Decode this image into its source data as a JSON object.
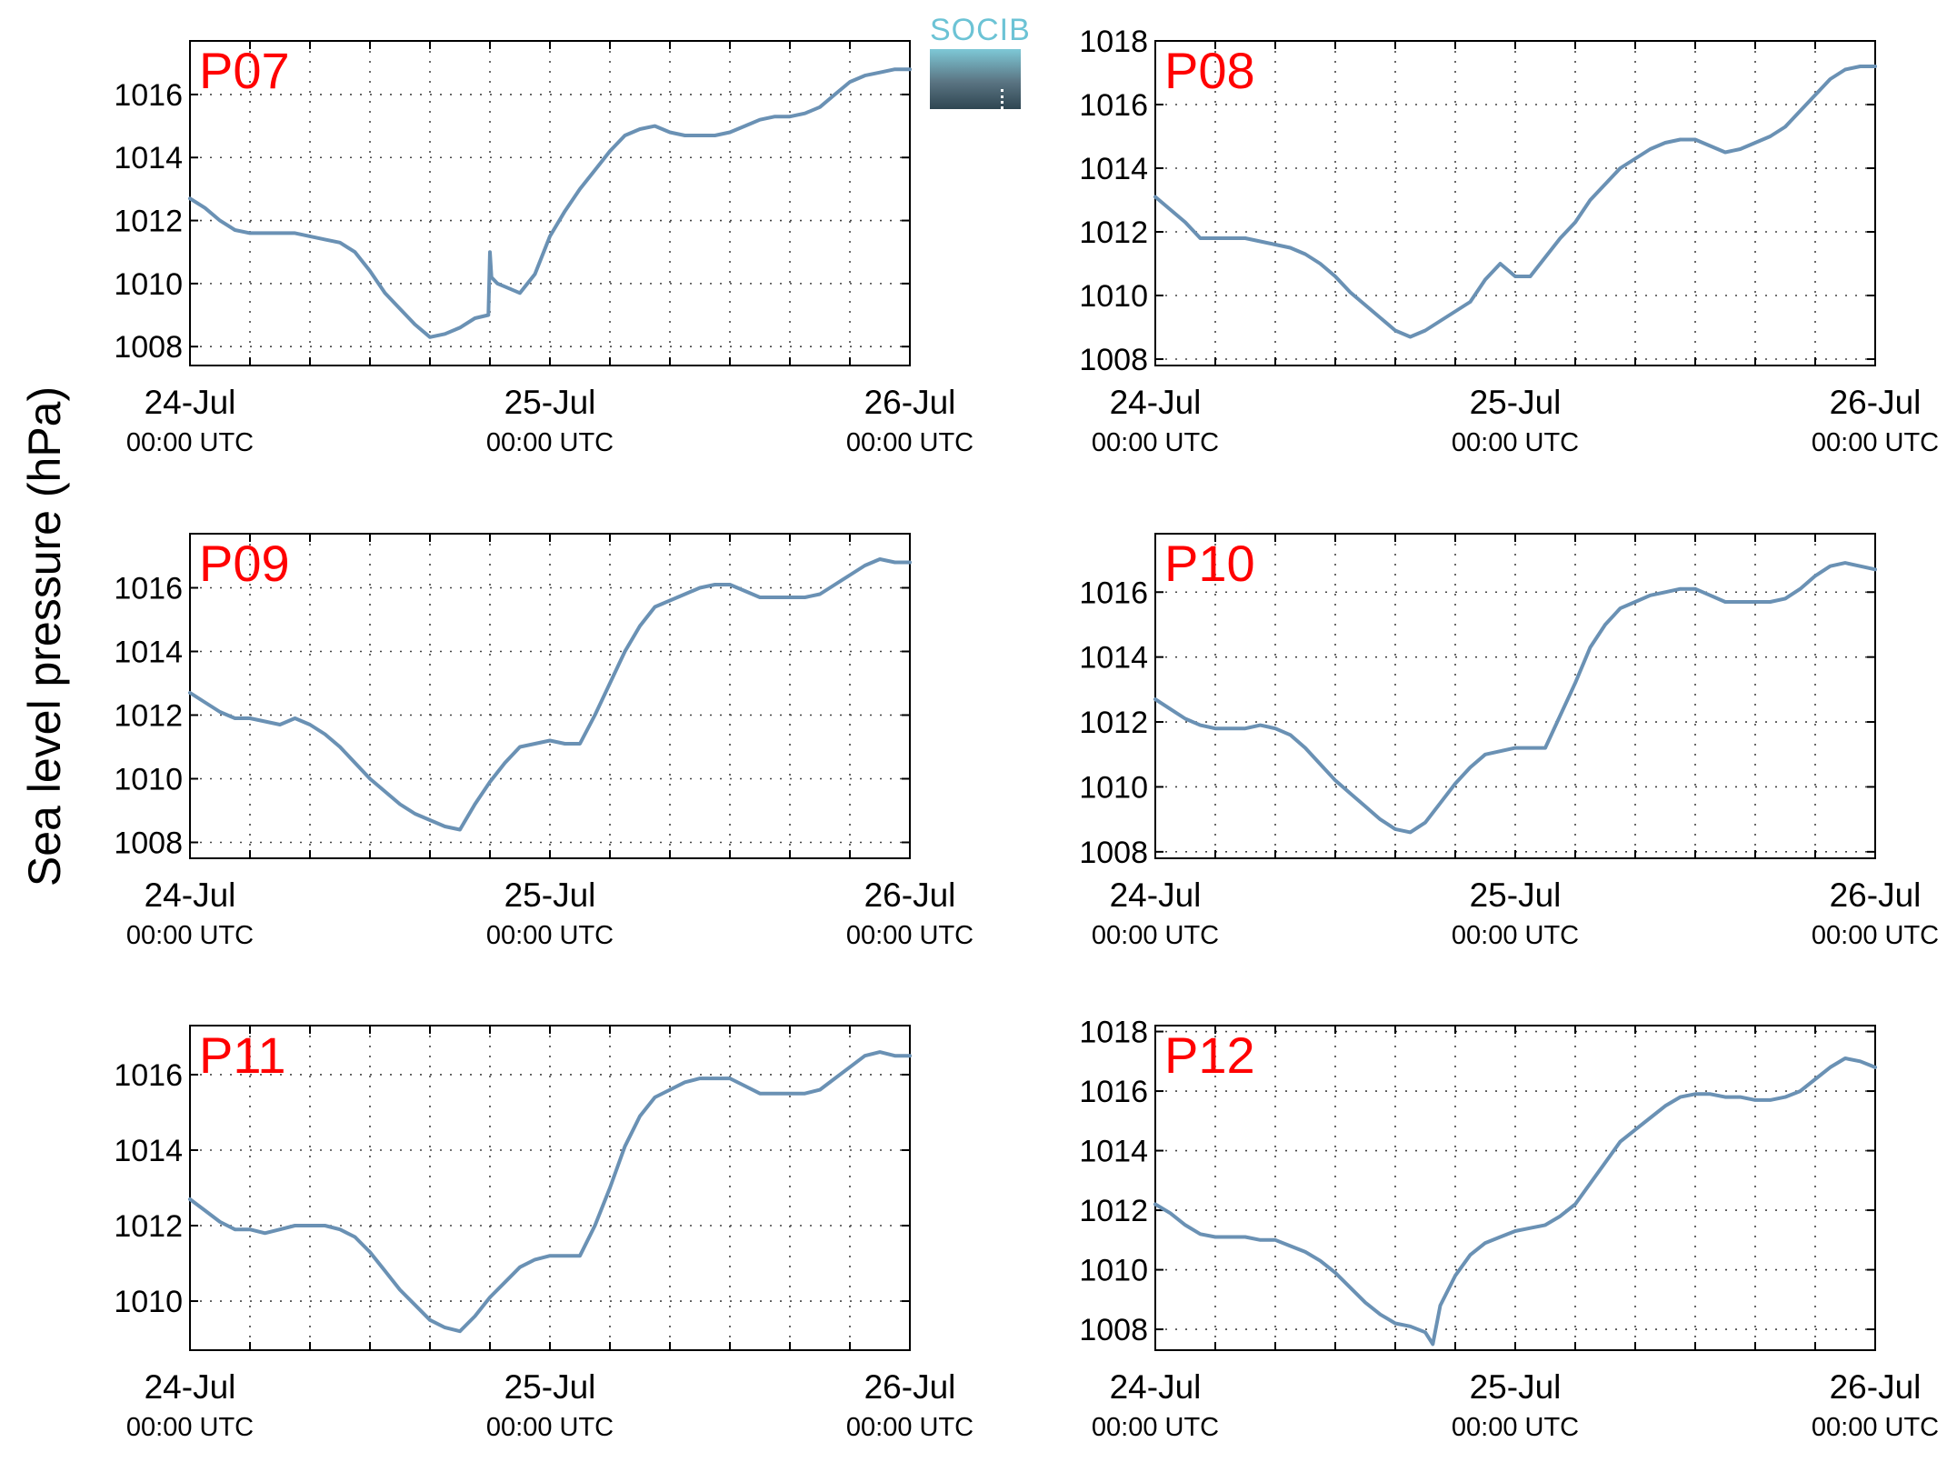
{
  "ylabel": "Sea level pressure (hPa)",
  "logo": {
    "text": "SOCIB",
    "color": "#6cc3d5"
  },
  "colors": {
    "line": "#6a91b4",
    "panel_label": "#ff0000",
    "grid": "#444444"
  },
  "x_ticks": [
    {
      "top": "24-Jul",
      "bottom": "00:00 UTC"
    },
    {
      "top": "25-Jul",
      "bottom": "00:00 UTC"
    },
    {
      "top": "26-Jul",
      "bottom": "00:00 UTC"
    }
  ],
  "chart_data": [
    {
      "type": "line",
      "label": "P07",
      "xlim": [
        0,
        48
      ],
      "ylim": [
        1007.4,
        1017.7
      ],
      "yticks": [
        1008,
        1010,
        1012,
        1014,
        1016
      ],
      "xlabel": "",
      "ylabel": "Sea level pressure (hPa)",
      "grid": true,
      "x": [
        0,
        1,
        2,
        3,
        4,
        5,
        6,
        7,
        8,
        9,
        10,
        11,
        12,
        13,
        14,
        15,
        16,
        17,
        18,
        19,
        19.9,
        20,
        20.1,
        20.5,
        21,
        22,
        23,
        24,
        25,
        26,
        27,
        28,
        29,
        30,
        31,
        32,
        33,
        34,
        35,
        36,
        37,
        38,
        39,
        40,
        41,
        42,
        43,
        44,
        45,
        46,
        47,
        48
      ],
      "values": [
        1012.7,
        1012.4,
        1012.0,
        1011.7,
        1011.6,
        1011.6,
        1011.6,
        1011.6,
        1011.5,
        1011.4,
        1011.3,
        1011.0,
        1010.4,
        1009.7,
        1009.2,
        1008.7,
        1008.3,
        1008.4,
        1008.6,
        1008.9,
        1009.0,
        1011.0,
        1010.2,
        1010.0,
        1009.9,
        1009.7,
        1010.3,
        1011.5,
        1012.3,
        1013.0,
        1013.6,
        1014.2,
        1014.7,
        1014.9,
        1015.0,
        1014.8,
        1014.7,
        1014.7,
        1014.7,
        1014.8,
        1015.0,
        1015.2,
        1015.3,
        1015.3,
        1015.4,
        1015.6,
        1016.0,
        1016.4,
        1016.6,
        1016.7,
        1016.8,
        1016.8
      ]
    },
    {
      "type": "line",
      "label": "P08",
      "xlim": [
        0,
        48
      ],
      "ylim": [
        1007.8,
        1018.0
      ],
      "yticks": [
        1008,
        1010,
        1012,
        1014,
        1016,
        1018
      ],
      "xlabel": "",
      "ylabel": "Sea level pressure (hPa)",
      "grid": true,
      "x": [
        0,
        1,
        2,
        3,
        4,
        5,
        6,
        7,
        8,
        9,
        10,
        11,
        12,
        13,
        14,
        15,
        16,
        17,
        18,
        19,
        20,
        21,
        22,
        23,
        24,
        25,
        26,
        27,
        28,
        29,
        30,
        31,
        32,
        33,
        34,
        35,
        36,
        37,
        38,
        39,
        40,
        41,
        42,
        43,
        44,
        45,
        46,
        47,
        48
      ],
      "values": [
        1013.1,
        1012.7,
        1012.3,
        1011.8,
        1011.8,
        1011.8,
        1011.8,
        1011.7,
        1011.6,
        1011.5,
        1011.3,
        1011.0,
        1010.6,
        1010.1,
        1009.7,
        1009.3,
        1008.9,
        1008.7,
        1008.9,
        1009.2,
        1009.5,
        1009.8,
        1010.5,
        1011.0,
        1010.6,
        1010.6,
        1011.2,
        1011.8,
        1012.3,
        1013.0,
        1013.5,
        1014.0,
        1014.3,
        1014.6,
        1014.8,
        1014.9,
        1014.9,
        1014.7,
        1014.5,
        1014.6,
        1014.8,
        1015.0,
        1015.3,
        1015.8,
        1016.3,
        1016.8,
        1017.1,
        1017.2,
        1017.2
      ]
    },
    {
      "type": "line",
      "label": "P09",
      "xlim": [
        0,
        48
      ],
      "ylim": [
        1007.5,
        1017.7
      ],
      "yticks": [
        1008,
        1010,
        1012,
        1014,
        1016
      ],
      "xlabel": "",
      "ylabel": "Sea level pressure (hPa)",
      "grid": true,
      "x": [
        0,
        1,
        2,
        3,
        4,
        5,
        6,
        7,
        8,
        9,
        10,
        11,
        12,
        13,
        14,
        15,
        16,
        17,
        18,
        19,
        20,
        21,
        22,
        23,
        24,
        25,
        26,
        27,
        28,
        29,
        30,
        31,
        32,
        33,
        34,
        35,
        36,
        37,
        38,
        39,
        40,
        41,
        42,
        43,
        44,
        45,
        46,
        47,
        48
      ],
      "values": [
        1012.7,
        1012.4,
        1012.1,
        1011.9,
        1011.9,
        1011.8,
        1011.7,
        1011.9,
        1011.7,
        1011.4,
        1011.0,
        1010.5,
        1010.0,
        1009.6,
        1009.2,
        1008.9,
        1008.7,
        1008.5,
        1008.4,
        1009.2,
        1009.9,
        1010.5,
        1011.0,
        1011.1,
        1011.2,
        1011.1,
        1011.1,
        1012.0,
        1013.0,
        1014.0,
        1014.8,
        1015.4,
        1015.6,
        1015.8,
        1016.0,
        1016.1,
        1016.1,
        1015.9,
        1015.7,
        1015.7,
        1015.7,
        1015.7,
        1015.8,
        1016.1,
        1016.4,
        1016.7,
        1016.9,
        1016.8,
        1016.8
      ]
    },
    {
      "type": "line",
      "label": "P10",
      "xlim": [
        0,
        48
      ],
      "ylim": [
        1007.8,
        1017.8
      ],
      "yticks": [
        1008,
        1010,
        1012,
        1014,
        1016
      ],
      "xlabel": "",
      "ylabel": "Sea level pressure (hPa)",
      "grid": true,
      "x": [
        0,
        1,
        2,
        3,
        4,
        5,
        6,
        7,
        8,
        9,
        10,
        11,
        12,
        13,
        14,
        15,
        16,
        17,
        18,
        19,
        20,
        21,
        22,
        23,
        24,
        25,
        26,
        27,
        28,
        29,
        30,
        31,
        32,
        33,
        34,
        35,
        36,
        37,
        38,
        39,
        40,
        41,
        42,
        43,
        44,
        45,
        46,
        47,
        48
      ],
      "values": [
        1012.7,
        1012.4,
        1012.1,
        1011.9,
        1011.8,
        1011.8,
        1011.8,
        1011.9,
        1011.8,
        1011.6,
        1011.2,
        1010.7,
        1010.2,
        1009.8,
        1009.4,
        1009.0,
        1008.7,
        1008.6,
        1008.9,
        1009.5,
        1010.1,
        1010.6,
        1011.0,
        1011.1,
        1011.2,
        1011.2,
        1011.2,
        1012.2,
        1013.2,
        1014.3,
        1015.0,
        1015.5,
        1015.7,
        1015.9,
        1016.0,
        1016.1,
        1016.1,
        1015.9,
        1015.7,
        1015.7,
        1015.7,
        1015.7,
        1015.8,
        1016.1,
        1016.5,
        1016.8,
        1016.9,
        1016.8,
        1016.7
      ]
    },
    {
      "type": "line",
      "label": "P11",
      "xlim": [
        0,
        48
      ],
      "ylim": [
        1008.7,
        1017.3
      ],
      "yticks": [
        1010,
        1012,
        1014,
        1016
      ],
      "xlabel": "",
      "ylabel": "Sea level pressure (hPa)",
      "grid": true,
      "x": [
        0,
        1,
        2,
        3,
        4,
        5,
        6,
        7,
        8,
        9,
        10,
        11,
        12,
        13,
        14,
        15,
        16,
        17,
        18,
        19,
        20,
        21,
        22,
        23,
        24,
        25,
        26,
        27,
        28,
        29,
        30,
        31,
        32,
        33,
        34,
        35,
        36,
        37,
        38,
        39,
        40,
        41,
        42,
        43,
        44,
        45,
        46,
        47,
        48
      ],
      "values": [
        1012.7,
        1012.4,
        1012.1,
        1011.9,
        1011.9,
        1011.8,
        1011.9,
        1012.0,
        1012.0,
        1012.0,
        1011.9,
        1011.7,
        1011.3,
        1010.8,
        1010.3,
        1009.9,
        1009.5,
        1009.3,
        1009.2,
        1009.6,
        1010.1,
        1010.5,
        1010.9,
        1011.1,
        1011.2,
        1011.2,
        1011.2,
        1012.0,
        1013.0,
        1014.1,
        1014.9,
        1015.4,
        1015.6,
        1015.8,
        1015.9,
        1015.9,
        1015.9,
        1015.7,
        1015.5,
        1015.5,
        1015.5,
        1015.5,
        1015.6,
        1015.9,
        1016.2,
        1016.5,
        1016.6,
        1016.5,
        1016.5
      ]
    },
    {
      "type": "line",
      "label": "P12",
      "xlim": [
        0,
        48
      ],
      "ylim": [
        1007.3,
        1018.2
      ],
      "yticks": [
        1008,
        1010,
        1012,
        1014,
        1016,
        1018
      ],
      "xlabel": "",
      "ylabel": "Sea level pressure (hPa)",
      "grid": true,
      "x": [
        0,
        1,
        2,
        3,
        4,
        5,
        6,
        7,
        8,
        9,
        10,
        11,
        12,
        13,
        14,
        15,
        16,
        17,
        18,
        18.5,
        19,
        20,
        21,
        22,
        23,
        24,
        25,
        26,
        27,
        28,
        29,
        30,
        31,
        32,
        33,
        34,
        35,
        36,
        37,
        38,
        39,
        40,
        41,
        42,
        43,
        44,
        45,
        46,
        47,
        48
      ],
      "values": [
        1012.2,
        1011.9,
        1011.5,
        1011.2,
        1011.1,
        1011.1,
        1011.1,
        1011.0,
        1011.0,
        1010.8,
        1010.6,
        1010.3,
        1009.9,
        1009.4,
        1008.9,
        1008.5,
        1008.2,
        1008.1,
        1007.9,
        1007.5,
        1008.8,
        1009.8,
        1010.5,
        1010.9,
        1011.1,
        1011.3,
        1011.4,
        1011.5,
        1011.8,
        1012.2,
        1012.9,
        1013.6,
        1014.3,
        1014.7,
        1015.1,
        1015.5,
        1015.8,
        1015.9,
        1015.9,
        1015.8,
        1015.8,
        1015.7,
        1015.7,
        1015.8,
        1016.0,
        1016.4,
        1016.8,
        1017.1,
        1017.0,
        1016.8
      ]
    }
  ]
}
